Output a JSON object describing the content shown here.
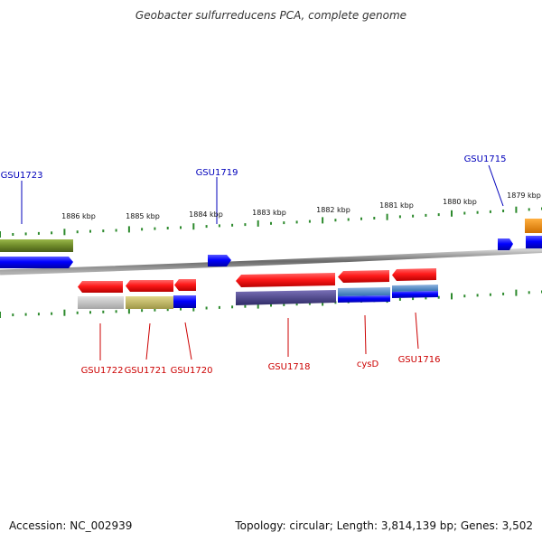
{
  "title": "Geobacter sulfurreducens PCA, complete genome",
  "scale_ticks": [
    "1886 kbp",
    "1885 kbp",
    "1884 kbp",
    "1883 kbp",
    "1882 kbp",
    "1881 kbp",
    "1880 kbp",
    "1879 kbp"
  ],
  "forward_genes": [
    "GSU1723",
    "GSU1719",
    "GSU1715"
  ],
  "reverse_genes": [
    "GSU1722",
    "GSU1721",
    "GSU1720",
    "GSU1718",
    "cysD",
    "GSU1716"
  ],
  "footer": {
    "accession": "Accession: NC_002939",
    "topology": "Topology: circular; Length: 3,814,139 bp; Genes: 3,502"
  },
  "colors": {
    "forward_gene": "#0000ee",
    "reverse_gene": "#ee0000",
    "backbone": "#888888",
    "tick": "#2d8a2d",
    "label_forward": "#0000bb",
    "label_reverse": "#cc0000"
  }
}
